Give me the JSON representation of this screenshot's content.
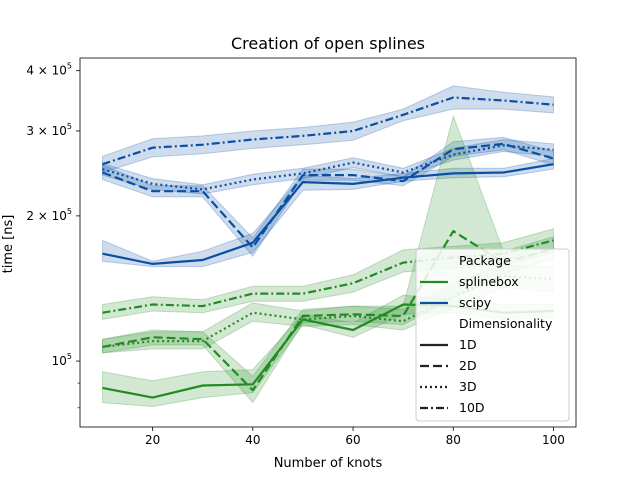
{
  "chart_data": {
    "type": "line",
    "title": "Creation of open splines",
    "xlabel": "Number of knots",
    "ylabel": "time [ns]",
    "yscale": "log",
    "xlim": [
      5.5,
      104.5
    ],
    "ylim": [
      73000,
      425000
    ],
    "x": [
      10,
      20,
      30,
      40,
      50,
      60,
      70,
      80,
      90,
      100
    ],
    "x_ticks": [
      20,
      40,
      60,
      80,
      100
    ],
    "x_tick_labels": [
      "20",
      "40",
      "60",
      "80",
      "100"
    ],
    "y_ticks": [
      {
        "value": 100000,
        "mant": "10",
        "exp": "5"
      },
      {
        "value": 200000,
        "mant": "2 × 10",
        "exp": "5"
      },
      {
        "value": 300000,
        "mant": "3 × 10",
        "exp": "5"
      },
      {
        "value": 400000,
        "mant": "4 × 10",
        "exp": "5"
      }
    ],
    "y_minor_ticks": [
      80000,
      90000
    ],
    "grid": false,
    "legend": {
      "placement": "lower-right",
      "package_title": "Package",
      "dimensionality_title": "Dimensionality",
      "packages": [
        {
          "label": "splinebox",
          "color": "#228b22"
        },
        {
          "label": "scipy",
          "color": "#0a4fa3"
        }
      ],
      "styles": [
        {
          "label": "1D",
          "dash": "solid"
        },
        {
          "label": "2D",
          "dash": "dashed"
        },
        {
          "label": "3D",
          "dash": "dotted"
        },
        {
          "label": "10D",
          "dash": "dashdot"
        }
      ]
    },
    "series": [
      {
        "package": "scipy",
        "dim": "1D",
        "color": "#0a4fa3",
        "dash": "solid",
        "values": [
          167000,
          159000,
          162000,
          176000,
          235000,
          233000,
          240000,
          245000,
          246000,
          256000
        ],
        "lower": [
          161000,
          157000,
          157000,
          168000,
          226000,
          227000,
          236000,
          240000,
          241000,
          250000
        ],
        "upper": [
          178000,
          161000,
          169000,
          184000,
          243000,
          239000,
          245000,
          251000,
          251000,
          263000
        ]
      },
      {
        "package": "scipy",
        "dim": "2D",
        "color": "#0a4fa3",
        "dash": "dashed",
        "values": [
          246000,
          225000,
          225000,
          172000,
          243000,
          243000,
          236000,
          275000,
          282000,
          263000
        ],
        "lower": [
          238000,
          219000,
          219000,
          165000,
          237000,
          237000,
          231000,
          266000,
          274000,
          255000
        ],
        "upper": [
          255000,
          231000,
          231000,
          180000,
          250000,
          250000,
          241000,
          285000,
          291000,
          272000
        ]
      },
      {
        "package": "scipy",
        "dim": "3D",
        "color": "#0a4fa3",
        "dash": "dotted",
        "values": [
          250000,
          233000,
          227000,
          238000,
          245000,
          258000,
          246000,
          268000,
          280000,
          274000
        ],
        "lower": [
          243000,
          227000,
          222000,
          232000,
          239000,
          252000,
          241000,
          261000,
          272000,
          266000
        ],
        "upper": [
          257000,
          239000,
          232000,
          244000,
          251000,
          264000,
          251000,
          276000,
          288000,
          282000
        ]
      },
      {
        "package": "scipy",
        "dim": "10D",
        "color": "#0a4fa3",
        "dash": "dashdot",
        "values": [
          256000,
          277000,
          281000,
          288000,
          293000,
          300000,
          324000,
          352000,
          347000,
          340000
        ],
        "lower": [
          246000,
          265000,
          269000,
          276000,
          281000,
          287000,
          315000,
          333000,
          333000,
          327000
        ],
        "upper": [
          266000,
          289000,
          293000,
          300000,
          305000,
          313000,
          333000,
          372000,
          361000,
          353000
        ]
      },
      {
        "package": "splinebox",
        "dim": "1D",
        "color": "#228b22",
        "dash": "solid",
        "values": [
          88000,
          84000,
          89000,
          89500,
          122000,
          116000,
          131000,
          130000,
          126000,
          127000
        ],
        "lower": [
          82000,
          80500,
          84000,
          86000,
          119000,
          112000,
          125000,
          126000,
          122000,
          123000
        ],
        "upper": [
          95000,
          91000,
          95000,
          96000,
          125000,
          120000,
          137000,
          134000,
          131000,
          131000
        ]
      },
      {
        "package": "splinebox",
        "dim": "2D",
        "color": "#228b22",
        "dash": "dashed",
        "values": [
          107000,
          112000,
          111000,
          87000,
          124000,
          125000,
          124000,
          186000,
          160000,
          171000
        ],
        "lower": [
          104000,
          108000,
          108000,
          82000,
          120000,
          121000,
          119000,
          135000,
          152000,
          163000
        ],
        "upper": [
          111000,
          116000,
          115000,
          93000,
          128000,
          130000,
          130000,
          322000,
          169000,
          181000
        ]
      },
      {
        "package": "splinebox",
        "dim": "3D",
        "color": "#228b22",
        "dash": "dotted",
        "values": [
          107000,
          110000,
          110000,
          126000,
          122000,
          124000,
          121000,
          136000,
          150000,
          148000
        ],
        "lower": [
          104000,
          106000,
          106000,
          121000,
          118000,
          119000,
          116000,
          129000,
          142000,
          139000
        ],
        "upper": [
          111000,
          115000,
          115000,
          132000,
          127000,
          130000,
          128000,
          145000,
          158000,
          157000
        ]
      },
      {
        "package": "splinebox",
        "dim": "10D",
        "color": "#228b22",
        "dash": "dashdot",
        "values": [
          126000,
          131000,
          130000,
          138000,
          138000,
          145000,
          160000,
          164000,
          167000,
          178000
        ],
        "lower": [
          122000,
          127000,
          126000,
          133000,
          133000,
          139000,
          153000,
          156000,
          158000,
          168000
        ],
        "upper": [
          131000,
          136000,
          134000,
          143000,
          143000,
          151000,
          170000,
          173000,
          176000,
          188000
        ]
      }
    ]
  }
}
